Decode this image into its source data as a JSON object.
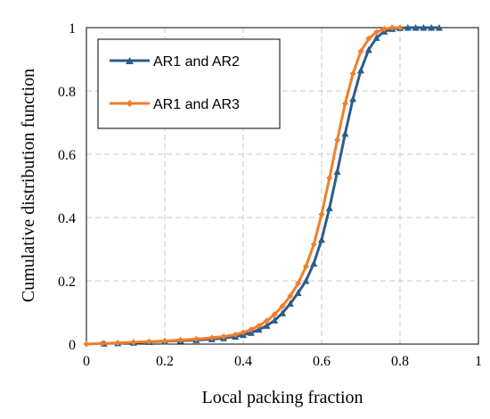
{
  "chart_data": {
    "type": "line",
    "xlabel": "Local packing fraction",
    "ylabel": "Cumulative distribution function",
    "xlim": [
      0,
      1
    ],
    "ylim": [
      0,
      1
    ],
    "x_ticks": [
      "0",
      "0.2",
      "0.4",
      "0.6",
      "0.8",
      "1"
    ],
    "y_ticks": [
      "0",
      "0.2",
      "0.4",
      "0.6",
      "0.8",
      "1"
    ],
    "grid": "dashed",
    "legend_position": "top-left",
    "series": [
      {
        "name": "AR1 and AR2",
        "color": "#2e5c8a",
        "marker": "triangle",
        "points": [
          [
            0.045,
            0.002
          ],
          [
            0.08,
            0.003
          ],
          [
            0.12,
            0.005
          ],
          [
            0.16,
            0.007
          ],
          [
            0.2,
            0.009
          ],
          [
            0.24,
            0.011
          ],
          [
            0.28,
            0.013
          ],
          [
            0.32,
            0.016
          ],
          [
            0.35,
            0.019
          ],
          [
            0.38,
            0.024
          ],
          [
            0.4,
            0.029
          ],
          [
            0.42,
            0.036
          ],
          [
            0.44,
            0.046
          ],
          [
            0.46,
            0.058
          ],
          [
            0.48,
            0.075
          ],
          [
            0.5,
            0.098
          ],
          [
            0.52,
            0.128
          ],
          [
            0.54,
            0.162
          ],
          [
            0.56,
            0.2
          ],
          [
            0.58,
            0.255
          ],
          [
            0.6,
            0.33
          ],
          [
            0.62,
            0.43
          ],
          [
            0.64,
            0.545
          ],
          [
            0.66,
            0.665
          ],
          [
            0.68,
            0.775
          ],
          [
            0.7,
            0.865
          ],
          [
            0.72,
            0.93
          ],
          [
            0.74,
            0.968
          ],
          [
            0.76,
            0.988
          ],
          [
            0.78,
            0.996
          ],
          [
            0.8,
            0.999
          ],
          [
            0.82,
            1.0
          ],
          [
            0.84,
            1.0
          ],
          [
            0.86,
            1.0
          ],
          [
            0.88,
            1.0
          ],
          [
            0.9,
            1.0
          ]
        ]
      },
      {
        "name": "AR1 and AR3",
        "color": "#f07f2a",
        "marker": "diamond",
        "points": [
          [
            0.0,
            0.0
          ],
          [
            0.04,
            0.002
          ],
          [
            0.08,
            0.004
          ],
          [
            0.12,
            0.006
          ],
          [
            0.16,
            0.008
          ],
          [
            0.2,
            0.01
          ],
          [
            0.24,
            0.013
          ],
          [
            0.28,
            0.016
          ],
          [
            0.32,
            0.02
          ],
          [
            0.35,
            0.024
          ],
          [
            0.38,
            0.03
          ],
          [
            0.4,
            0.037
          ],
          [
            0.42,
            0.046
          ],
          [
            0.44,
            0.058
          ],
          [
            0.46,
            0.074
          ],
          [
            0.48,
            0.094
          ],
          [
            0.5,
            0.12
          ],
          [
            0.52,
            0.152
          ],
          [
            0.54,
            0.192
          ],
          [
            0.56,
            0.245
          ],
          [
            0.58,
            0.315
          ],
          [
            0.6,
            0.41
          ],
          [
            0.62,
            0.525
          ],
          [
            0.64,
            0.645
          ],
          [
            0.66,
            0.76
          ],
          [
            0.68,
            0.855
          ],
          [
            0.7,
            0.925
          ],
          [
            0.72,
            0.965
          ],
          [
            0.74,
            0.986
          ],
          [
            0.76,
            0.996
          ],
          [
            0.78,
            1.0
          ],
          [
            0.8,
            1.0
          ]
        ]
      }
    ]
  }
}
